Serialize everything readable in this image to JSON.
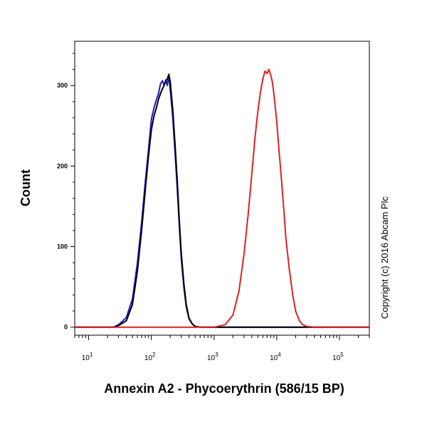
{
  "chart_data": {
    "type": "line",
    "title": "",
    "xlabel": "Annexin A2 - Phycoerythrin (586/15 BP)",
    "ylabel": "Count",
    "xscale": "log",
    "xlim": [
      6,
      300000
    ],
    "ylim": [
      -10,
      355
    ],
    "y_ticks": [
      0,
      100,
      200,
      300
    ],
    "x_tick_labels": [
      {
        "base": "10",
        "exp": "1",
        "value": 10
      },
      {
        "base": "10",
        "exp": "2",
        "value": 100
      },
      {
        "base": "10",
        "exp": "3",
        "value": 1000
      },
      {
        "base": "10",
        "exp": "4",
        "value": 10000
      },
      {
        "base": "10",
        "exp": "5",
        "value": 100000
      }
    ],
    "grid": false,
    "copyright": "Copyright (c) 2016 Abcam Plc",
    "series": [
      {
        "color": "#1a1acc",
        "x": [
          6,
          25,
          30,
          40,
          50,
          60,
          70,
          80,
          90,
          100,
          110,
          120,
          130,
          140,
          150,
          160,
          170,
          180,
          190,
          200,
          220,
          240,
          260,
          280,
          300,
          330,
          360,
          400,
          450,
          500,
          600,
          800,
          1000,
          300000
        ],
        "y": [
          0,
          0,
          3,
          12,
          35,
          80,
          130,
          180,
          220,
          258,
          272,
          282,
          290,
          302,
          306,
          300,
          307,
          300,
          312,
          295,
          260,
          215,
          170,
          125,
          85,
          50,
          25,
          10,
          4,
          1,
          0,
          0,
          0,
          0
        ]
      },
      {
        "color": "#000000",
        "x": [
          6,
          25,
          30,
          40,
          50,
          60,
          70,
          80,
          90,
          100,
          110,
          120,
          130,
          140,
          150,
          160,
          170,
          180,
          190,
          200,
          220,
          240,
          260,
          280,
          300,
          330,
          360,
          400,
          450,
          500,
          600,
          800,
          1000,
          300000
        ],
        "y": [
          0,
          0,
          2,
          8,
          28,
          70,
          120,
          170,
          212,
          245,
          262,
          272,
          283,
          290,
          296,
          300,
          306,
          308,
          314,
          305,
          270,
          225,
          180,
          132,
          92,
          55,
          28,
          11,
          4,
          1,
          0,
          0,
          0,
          0
        ]
      },
      {
        "color": "#e02020",
        "x": [
          6,
          1000,
          1500,
          2000,
          2500,
          3000,
          3500,
          4000,
          4500,
          5000,
          5500,
          6000,
          6500,
          7000,
          7500,
          8000,
          8500,
          9000,
          10000,
          11000,
          12000,
          13000,
          14000,
          16000,
          18000,
          20000,
          23000,
          26000,
          30000,
          40000,
          300000
        ],
        "y": [
          0,
          0,
          3,
          15,
          45,
          90,
          140,
          190,
          235,
          268,
          292,
          308,
          318,
          315,
          320,
          313,
          305,
          290,
          255,
          215,
          180,
          145,
          110,
          70,
          40,
          20,
          8,
          3,
          1,
          0,
          0
        ]
      }
    ]
  }
}
